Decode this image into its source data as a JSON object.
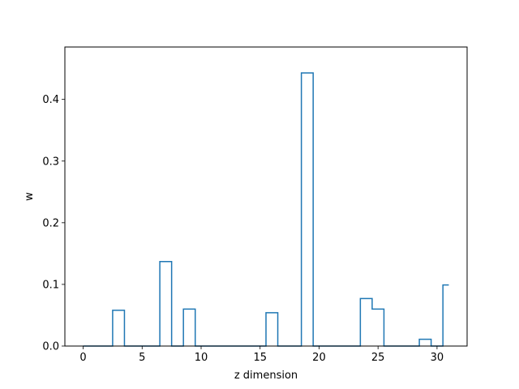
{
  "chart_data": {
    "type": "line",
    "drawstyle": "steps-mid",
    "title": "",
    "xlabel": "z dimension",
    "ylabel": "w",
    "xlim": [
      -1.55,
      32.55
    ],
    "ylim": [
      0.0,
      0.485
    ],
    "xticks": [
      0,
      5,
      10,
      15,
      20,
      25,
      30
    ],
    "yticks": [
      0.0,
      0.1,
      0.2,
      0.3,
      0.4
    ],
    "ytick_labels": [
      "0.0",
      "0.1",
      "0.2",
      "0.3",
      "0.4"
    ],
    "grid": false,
    "series": [
      {
        "color": "#1f77b4",
        "x": [
          0,
          1,
          2,
          3,
          4,
          5,
          6,
          7,
          8,
          9,
          10,
          11,
          12,
          13,
          14,
          15,
          16,
          17,
          18,
          19,
          20,
          21,
          22,
          23,
          24,
          25,
          26,
          27,
          28,
          29,
          30,
          31
        ],
        "y": [
          0,
          0,
          0,
          0.058,
          0,
          0,
          0,
          0.137,
          0,
          0.06,
          0,
          0,
          0,
          0,
          0,
          0,
          0.054,
          0,
          0,
          0.443,
          0,
          0,
          0,
          0,
          0.077,
          0.06,
          0,
          0,
          0,
          0.011,
          0,
          0.099
        ]
      }
    ]
  }
}
